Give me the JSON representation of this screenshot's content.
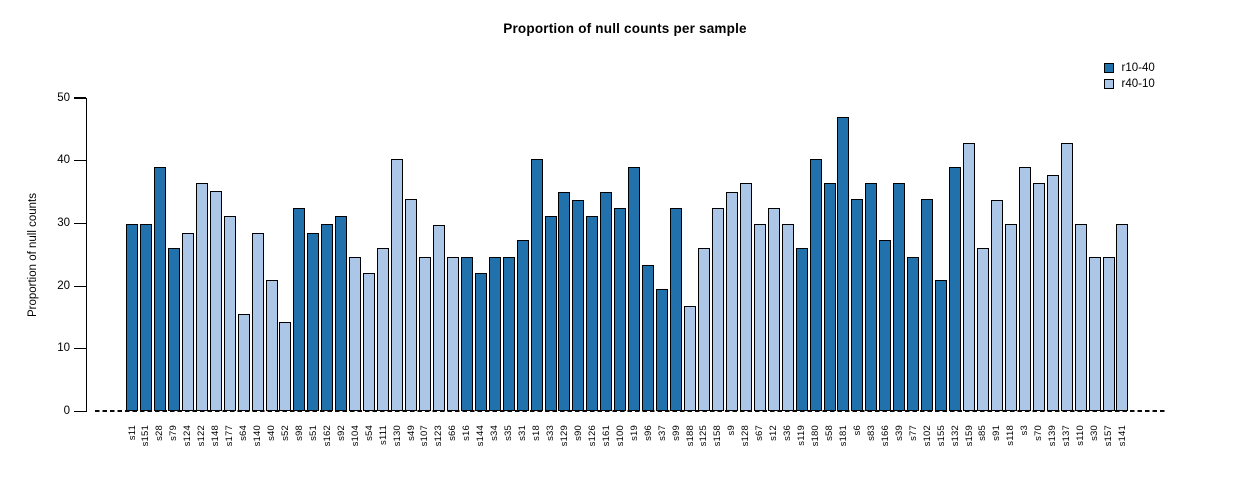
{
  "page": {
    "background": "#ffffff"
  },
  "chart_data": {
    "type": "bar",
    "title": "Proportion of null counts per sample",
    "xlabel": "",
    "ylabel": "Proportion of null counts",
    "ylim": [
      0,
      50
    ],
    "yticks": [
      0,
      10,
      20,
      30,
      40,
      50
    ],
    "grid": false,
    "zero_line": {
      "style": "dashed",
      "color": "#000000"
    },
    "bar_outline_color": "#000000",
    "legend": {
      "position": "top-right",
      "entries": [
        {
          "name": "r10-40",
          "color": "#2171ac"
        },
        {
          "name": "r40-10",
          "color": "#acc6e8"
        }
      ]
    },
    "groups": [
      {
        "series": "r10-40",
        "bars": [
          {
            "label": "s11",
            "value": 29.9
          },
          {
            "label": "s151",
            "value": 29.9
          },
          {
            "label": "s28",
            "value": 39.0
          },
          {
            "label": "s79",
            "value": 26.0
          }
        ]
      },
      {
        "series": "r40-10",
        "bars": [
          {
            "label": "s124",
            "value": 28.5
          },
          {
            "label": "s122",
            "value": 36.5
          },
          {
            "label": "s148",
            "value": 35.1
          },
          {
            "label": "s177",
            "value": 31.2
          },
          {
            "label": "s64",
            "value": 15.6
          },
          {
            "label": "s140",
            "value": 28.5
          },
          {
            "label": "s40",
            "value": 20.9
          },
          {
            "label": "s52",
            "value": 14.2
          }
        ]
      },
      {
        "series": "r10-40",
        "bars": [
          {
            "label": "s98",
            "value": 32.5
          },
          {
            "label": "s51",
            "value": 28.5
          },
          {
            "label": "s162",
            "value": 29.9
          },
          {
            "label": "s92",
            "value": 31.2
          }
        ]
      },
      {
        "series": "r40-10",
        "bars": [
          {
            "label": "s104",
            "value": 24.6
          },
          {
            "label": "s54",
            "value": 22.1
          },
          {
            "label": "s111",
            "value": 26.0
          },
          {
            "label": "s130",
            "value": 40.3
          },
          {
            "label": "s49",
            "value": 33.9
          },
          {
            "label": "s107",
            "value": 24.6
          },
          {
            "label": "s123",
            "value": 29.8
          },
          {
            "label": "s66",
            "value": 24.6
          }
        ]
      },
      {
        "series": "r10-40",
        "bars": [
          {
            "label": "s16",
            "value": 24.6
          },
          {
            "label": "s144",
            "value": 22.1
          },
          {
            "label": "s34",
            "value": 24.6
          },
          {
            "label": "s35",
            "value": 24.6
          },
          {
            "label": "s31",
            "value": 27.3
          },
          {
            "label": "s18",
            "value": 40.3
          },
          {
            "label": "s33",
            "value": 31.2
          },
          {
            "label": "s129",
            "value": 35.0
          },
          {
            "label": "s90",
            "value": 33.8
          },
          {
            "label": "s126",
            "value": 31.2
          },
          {
            "label": "s161",
            "value": 35.0
          },
          {
            "label": "s100",
            "value": 32.4
          },
          {
            "label": "s19",
            "value": 39.0
          },
          {
            "label": "s96",
            "value": 23.4
          },
          {
            "label": "s37",
            "value": 19.6
          },
          {
            "label": "s99",
            "value": 32.5
          }
        ]
      },
      {
        "series": "r40-10",
        "bars": [
          {
            "label": "s188",
            "value": 16.9
          },
          {
            "label": "s125",
            "value": 26.0
          },
          {
            "label": "s158",
            "value": 32.5
          },
          {
            "label": "s9",
            "value": 35.0
          },
          {
            "label": "s128",
            "value": 36.5
          },
          {
            "label": "s67",
            "value": 29.9
          },
          {
            "label": "s12",
            "value": 32.5
          },
          {
            "label": "s36",
            "value": 29.9
          }
        ]
      },
      {
        "series": "r10-40",
        "bars": [
          {
            "label": "s119",
            "value": 26.0
          },
          {
            "label": "s180",
            "value": 40.3
          },
          {
            "label": "s58",
            "value": 36.5
          },
          {
            "label": "s181",
            "value": 46.9
          },
          {
            "label": "s6",
            "value": 33.9
          },
          {
            "label": "s83",
            "value": 36.5
          },
          {
            "label": "s166",
            "value": 27.3
          },
          {
            "label": "s39",
            "value": 36.5
          },
          {
            "label": "s77",
            "value": 24.6
          },
          {
            "label": "s102",
            "value": 33.9
          },
          {
            "label": "s155",
            "value": 20.9
          },
          {
            "label": "s132",
            "value": 39.0
          }
        ]
      },
      {
        "series": "r40-10",
        "bars": [
          {
            "label": "s159",
            "value": 42.9
          },
          {
            "label": "s85",
            "value": 26.0
          },
          {
            "label": "s91",
            "value": 33.8
          },
          {
            "label": "s118",
            "value": 29.9
          },
          {
            "label": "s3",
            "value": 39.0
          },
          {
            "label": "s70",
            "value": 36.5
          },
          {
            "label": "s139",
            "value": 37.7
          },
          {
            "label": "s137",
            "value": 42.9
          },
          {
            "label": "s110",
            "value": 29.9
          },
          {
            "label": "s30",
            "value": 24.6
          },
          {
            "label": "s157",
            "value": 24.6
          },
          {
            "label": "s141",
            "value": 29.9
          }
        ]
      }
    ]
  }
}
